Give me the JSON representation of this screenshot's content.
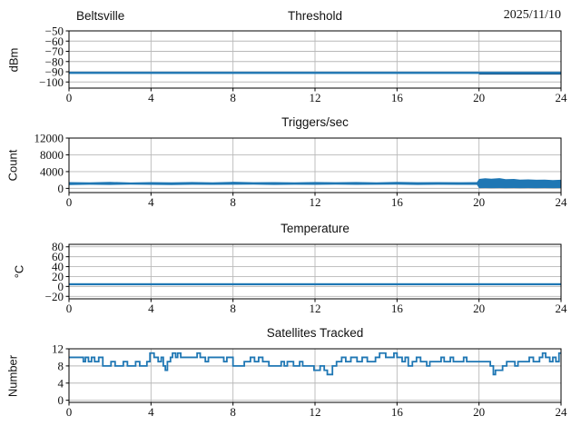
{
  "figure": {
    "background": "#ffffff",
    "accent_color": "#1f77b4",
    "grid_color": "#b8b8b8",
    "station": "Beltsville",
    "date": "2025/11/10"
  },
  "chart_data": [
    {
      "type": "line",
      "title": "Threshold",
      "title_left": "Beltsville",
      "title_right": "2025/11/10",
      "ylabel": "dBm",
      "xlim": [
        0,
        24
      ],
      "ylim": [
        -106,
        -50
      ],
      "xticks": [
        0,
        4,
        8,
        12,
        16,
        20,
        24
      ],
      "yticks": [
        -100,
        -90,
        -80,
        -70,
        -60,
        -50
      ],
      "grid": true,
      "series": [
        {
          "name": "threshold-envelope",
          "kind": "band",
          "color": "#1f77b4",
          "opacity": 0.35,
          "points": [
            [
              0,
              -92.5,
              -89.7
            ],
            [
              24,
              -92.5,
              -89.7
            ]
          ]
        },
        {
          "name": "threshold-late-band",
          "kind": "band",
          "color": "#10497e",
          "opacity": 0.9,
          "points": [
            [
              20,
              -92.8,
              -90.9
            ],
            [
              24,
              -92.8,
              -90.9
            ]
          ]
        },
        {
          "name": "threshold",
          "kind": "line",
          "color": "#1f77b4",
          "width": 2.1,
          "points": [
            [
              0,
              -91
            ],
            [
              24,
              -91
            ]
          ]
        }
      ]
    },
    {
      "type": "area",
      "title": "Triggers/sec",
      "ylabel": "Count",
      "xlim": [
        0,
        24
      ],
      "ylim": [
        -1000,
        12000
      ],
      "xticks": [
        0,
        4,
        8,
        12,
        16,
        20,
        24
      ],
      "yticks": [
        0,
        4000,
        8000,
        12000
      ],
      "grid": true,
      "series": [
        {
          "name": "triggers-envelope",
          "kind": "band",
          "color": "#1f77b4",
          "opacity": 1,
          "points": [
            [
              0,
              800,
              1500
            ],
            [
              1,
              860,
              1440
            ],
            [
              2,
              820,
              1550
            ],
            [
              3,
              900,
              1400
            ],
            [
              4,
              850,
              1500
            ],
            [
              5,
              800,
              1450
            ],
            [
              6,
              880,
              1520
            ],
            [
              7,
              830,
              1430
            ],
            [
              8,
              860,
              1560
            ],
            [
              9,
              900,
              1470
            ],
            [
              10,
              820,
              1500
            ],
            [
              11,
              870,
              1440
            ],
            [
              12,
              840,
              1530
            ],
            [
              13,
              890,
              1460
            ],
            [
              14,
              830,
              1510
            ],
            [
              15,
              860,
              1430
            ],
            [
              16,
              900,
              1550
            ],
            [
              17,
              820,
              1470
            ],
            [
              18,
              880,
              1500
            ],
            [
              19,
              850,
              1460
            ],
            [
              19.9,
              840,
              1480
            ],
            [
              20,
              60,
              2250
            ],
            [
              20.3,
              80,
              2400
            ],
            [
              20.6,
              50,
              2300
            ],
            [
              21,
              70,
              2450
            ],
            [
              21.3,
              60,
              2200
            ],
            [
              21.7,
              80,
              2250
            ],
            [
              22,
              60,
              2100
            ],
            [
              22.4,
              70,
              2150
            ],
            [
              22.8,
              50,
              2050
            ],
            [
              23.2,
              80,
              2100
            ],
            [
              23.6,
              60,
              1980
            ],
            [
              24,
              70,
              2050
            ]
          ]
        }
      ]
    },
    {
      "type": "line",
      "title": "Temperature",
      "ylabel": "°C",
      "xlim": [
        0,
        24
      ],
      "ylim": [
        -25,
        85
      ],
      "xticks": [
        0,
        4,
        8,
        12,
        16,
        20,
        24
      ],
      "yticks": [
        -20,
        0,
        20,
        40,
        60,
        80
      ],
      "grid": true,
      "series": [
        {
          "name": "temperature-envelope",
          "kind": "band",
          "color": "#1f77b4",
          "opacity": 0.35,
          "points": [
            [
              0,
              2.2,
              6.6
            ],
            [
              24,
              2.2,
              6.6
            ]
          ]
        },
        {
          "name": "temperature",
          "kind": "line",
          "color": "#1f77b4",
          "width": 2.1,
          "points": [
            [
              0,
              4.4
            ],
            [
              24,
              4.4
            ]
          ]
        }
      ]
    },
    {
      "type": "line",
      "title": "Satellites Tracked",
      "ylabel": "Number",
      "xlim": [
        0,
        24
      ],
      "ylim": [
        -0.5,
        12
      ],
      "xticks": [
        0,
        4,
        8,
        12,
        16,
        20,
        24
      ],
      "yticks": [
        0,
        4,
        8,
        12
      ],
      "grid": true,
      "series": [
        {
          "name": "satellites",
          "kind": "step",
          "color": "#1f77b4",
          "width": 1.8,
          "points": [
            [
              0,
              10
            ],
            [
              0.7,
              9
            ],
            [
              0.8,
              10
            ],
            [
              0.95,
              9
            ],
            [
              1.1,
              10
            ],
            [
              1.25,
              9
            ],
            [
              1.45,
              10
            ],
            [
              1.65,
              8
            ],
            [
              2.05,
              9
            ],
            [
              2.25,
              8
            ],
            [
              2.65,
              9
            ],
            [
              2.85,
              8
            ],
            [
              3.25,
              9
            ],
            [
              3.45,
              8
            ],
            [
              3.8,
              9
            ],
            [
              3.95,
              11
            ],
            [
              4.15,
              10
            ],
            [
              4.35,
              9
            ],
            [
              4.5,
              10
            ],
            [
              4.6,
              8
            ],
            [
              4.7,
              7
            ],
            [
              4.8,
              9
            ],
            [
              4.95,
              10
            ],
            [
              5.05,
              11
            ],
            [
              5.2,
              10
            ],
            [
              5.3,
              11
            ],
            [
              5.45,
              10
            ],
            [
              6.25,
              11
            ],
            [
              6.4,
              10
            ],
            [
              6.65,
              9
            ],
            [
              6.8,
              10
            ],
            [
              7.55,
              9
            ],
            [
              7.7,
              10
            ],
            [
              8.0,
              8
            ],
            [
              8.55,
              9
            ],
            [
              8.85,
              10
            ],
            [
              9.05,
              9
            ],
            [
              9.25,
              10
            ],
            [
              9.45,
              9
            ],
            [
              9.75,
              8
            ],
            [
              10.35,
              9
            ],
            [
              10.5,
              8
            ],
            [
              10.65,
              9
            ],
            [
              10.95,
              8
            ],
            [
              11.25,
              9
            ],
            [
              11.4,
              8
            ],
            [
              11.95,
              7
            ],
            [
              12.25,
              8
            ],
            [
              12.45,
              7
            ],
            [
              12.6,
              6
            ],
            [
              12.85,
              8
            ],
            [
              13.05,
              9
            ],
            [
              13.3,
              10
            ],
            [
              13.5,
              9
            ],
            [
              13.75,
              10
            ],
            [
              14.05,
              9
            ],
            [
              14.3,
              10
            ],
            [
              14.55,
              9
            ],
            [
              14.95,
              10
            ],
            [
              15.15,
              11
            ],
            [
              15.45,
              10
            ],
            [
              15.85,
              11
            ],
            [
              16.0,
              10
            ],
            [
              16.25,
              9
            ],
            [
              16.4,
              10
            ],
            [
              16.55,
              8
            ],
            [
              16.75,
              9
            ],
            [
              16.95,
              10
            ],
            [
              17.15,
              9
            ],
            [
              17.45,
              8
            ],
            [
              17.6,
              9
            ],
            [
              18.15,
              10
            ],
            [
              18.3,
              9
            ],
            [
              18.6,
              10
            ],
            [
              18.75,
              9
            ],
            [
              19.25,
              10
            ],
            [
              19.4,
              9
            ],
            [
              20.55,
              8
            ],
            [
              20.7,
              6
            ],
            [
              20.8,
              7
            ],
            [
              21.15,
              8
            ],
            [
              21.35,
              9
            ],
            [
              21.75,
              8
            ],
            [
              21.9,
              9
            ],
            [
              22.45,
              10
            ],
            [
              22.65,
              9
            ],
            [
              22.95,
              10
            ],
            [
              23.1,
              11
            ],
            [
              23.25,
              10
            ],
            [
              23.45,
              9
            ],
            [
              23.6,
              10
            ],
            [
              23.75,
              9
            ],
            [
              23.9,
              11
            ],
            [
              24,
              11
            ]
          ]
        }
      ]
    }
  ]
}
